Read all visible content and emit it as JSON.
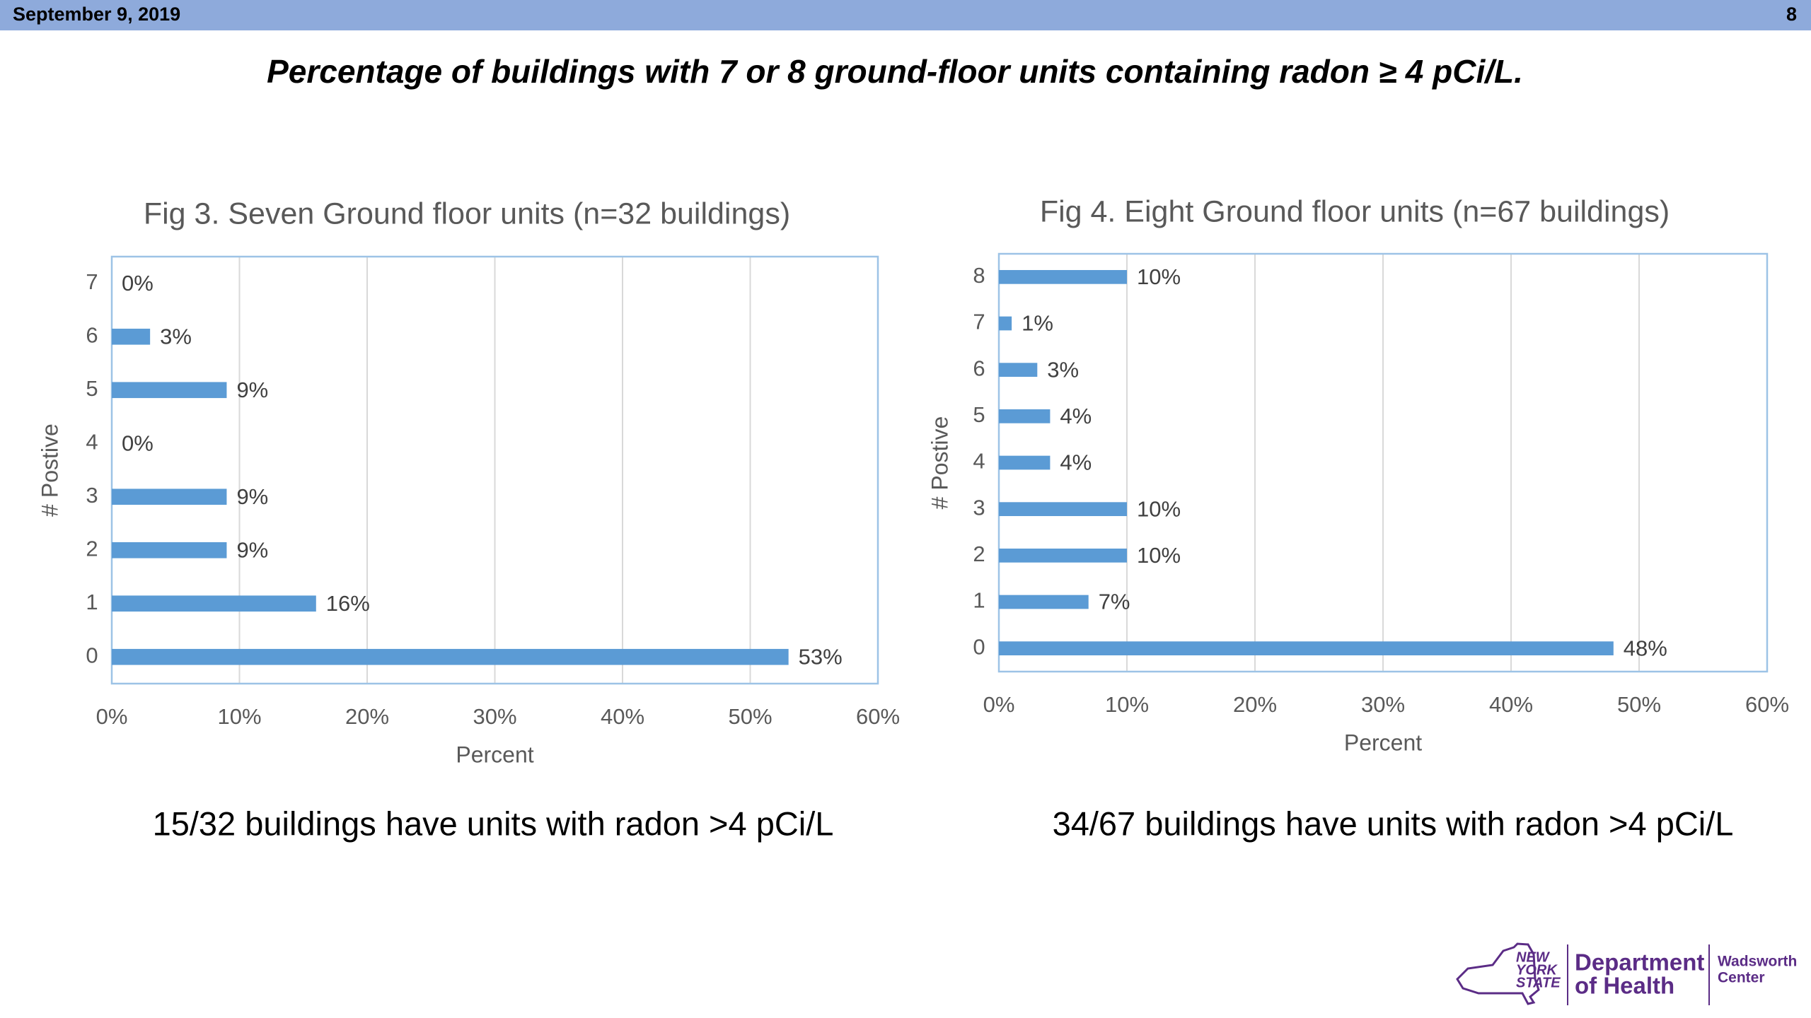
{
  "header": {
    "date": "September 9, 2019",
    "page": "8"
  },
  "title": "Percentage of buildings with 7 or 8 ground-floor units containing radon ≥ 4 pCi/L.",
  "chart_data": [
    {
      "type": "bar",
      "orientation": "horizontal",
      "title": "Fig 3. Seven Ground floor units (n=32 buildings)",
      "x_label": "Percent",
      "y_label": "# Postive",
      "categories": [
        "0",
        "1",
        "2",
        "3",
        "4",
        "5",
        "6",
        "7"
      ],
      "values": [
        53,
        16,
        9,
        9,
        0,
        9,
        3,
        0
      ],
      "value_labels": [
        "53%",
        "16%",
        "9%",
        "9%",
        "0%",
        "9%",
        "3%",
        "0%"
      ],
      "color": "#5b9bd5",
      "xlim": [
        0,
        60
      ],
      "xticks": [
        {
          "value": 0,
          "label": "0%"
        },
        {
          "value": 10,
          "label": "10%"
        },
        {
          "value": 20,
          "label": "20%"
        },
        {
          "value": 30,
          "label": "30%"
        },
        {
          "value": 40,
          "label": "40%"
        },
        {
          "value": 50,
          "label": "50%"
        },
        {
          "value": 60,
          "label": "60%"
        }
      ],
      "grid": true
    },
    {
      "type": "bar",
      "orientation": "horizontal",
      "title": "Fig 4. Eight Ground floor units (n=67 buildings)",
      "x_label": "Percent",
      "y_label": "# Postive",
      "categories": [
        "0",
        "1",
        "2",
        "3",
        "4",
        "5",
        "6",
        "7",
        "8"
      ],
      "values": [
        48,
        7,
        10,
        10,
        4,
        4,
        3,
        1,
        10
      ],
      "value_labels": [
        "48%",
        "7%",
        "10%",
        "10%",
        "4%",
        "4%",
        "3%",
        "1%",
        "10%"
      ],
      "color": "#5b9bd5",
      "xlim": [
        0,
        60
      ],
      "xticks": [
        {
          "value": 0,
          "label": "0%"
        },
        {
          "value": 10,
          "label": "10%"
        },
        {
          "value": 20,
          "label": "20%"
        },
        {
          "value": 30,
          "label": "30%"
        },
        {
          "value": 40,
          "label": "40%"
        },
        {
          "value": 50,
          "label": "50%"
        },
        {
          "value": 60,
          "label": "60%"
        }
      ],
      "grid": true
    }
  ],
  "captions": [
    "15/32 buildings have units with radon >4 pCi/L",
    "34/67 buildings have units with radon >4 pCi/L"
  ],
  "logo": {
    "state_lines": [
      "NEW",
      "YORK",
      "STATE"
    ],
    "department_lines": [
      "Department",
      "of Health"
    ],
    "center_lines": [
      "Wadsworth",
      "Center"
    ]
  }
}
